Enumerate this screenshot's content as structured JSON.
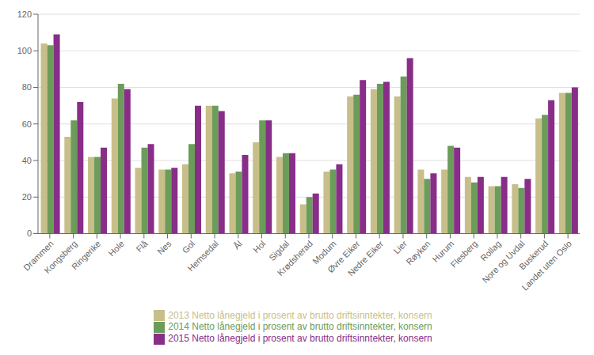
{
  "chart_data": {
    "type": "bar",
    "categories": [
      "Drammen",
      "Kongsberg",
      "Ringerike",
      "Hole",
      "Flå",
      "Nes",
      "Gol",
      "Hemsedal",
      "Ål",
      "Hol",
      "Sigdal",
      "Krødsherad",
      "Modum",
      "Øvre Eiker",
      "Nedre Eiker",
      "Lier",
      "Røyken",
      "Hurum",
      "Flesberg",
      "Rollag",
      "Nore og Uvdal",
      "Buskerud",
      "Landet uten Oslo"
    ],
    "series": [
      {
        "name": "2013 Netto lånegjeld i prosent av brutto driftsinntekter, konsern",
        "color": "#c8be8a",
        "values": [
          104,
          53,
          42,
          74,
          36,
          35,
          38,
          70,
          33,
          50,
          42,
          16,
          34,
          75,
          79,
          75,
          35,
          35,
          31,
          26,
          27,
          63,
          77
        ]
      },
      {
        "name": "2014 Netto lånegjeld i prosent av brutto driftsinntekter, konsern",
        "color": "#6b9c5a",
        "values": [
          103,
          62,
          42,
          82,
          47,
          35,
          49,
          70,
          34,
          62,
          44,
          20,
          35,
          76,
          82,
          86,
          30,
          48,
          28,
          26,
          25,
          65,
          77
        ]
      },
      {
        "name": "2015 Netto lånegjeld i prosent av brutto driftsinntekter, konsern",
        "color": "#882d88",
        "values": [
          109,
          72,
          47,
          79,
          49,
          36,
          70,
          67,
          43,
          62,
          44,
          22,
          38,
          84,
          83,
          96,
          33,
          47,
          31,
          31,
          30,
          73,
          80
        ]
      }
    ],
    "ylim": [
      0,
      120
    ],
    "yticks": [
      0,
      20,
      40,
      60,
      80,
      100,
      120
    ],
    "grid": true,
    "legend": "bottom"
  }
}
